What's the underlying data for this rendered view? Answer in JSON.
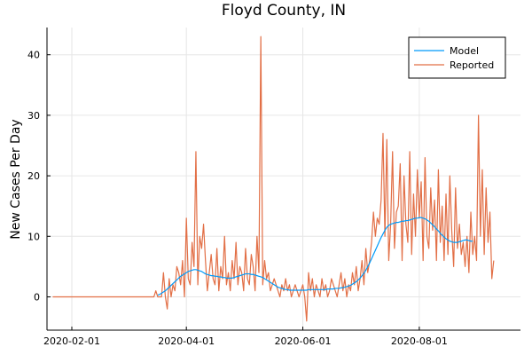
{
  "chart_data": {
    "type": "line",
    "title": "Floyd County, IN",
    "xlabel": "",
    "ylabel": "New Cases Per Day",
    "x_start": "2020-01-22",
    "x_step_days": 1,
    "xlim": [
      "2020-01-19",
      "2020-09-23"
    ],
    "ylim": [
      -5.5,
      44.5
    ],
    "xticks": [
      {
        "date": "2020-02-01",
        "label": "2020-02-01"
      },
      {
        "date": "2020-04-01",
        "label": "2020-04-01"
      },
      {
        "date": "2020-06-01",
        "label": "2020-06-01"
      },
      {
        "date": "2020-08-01",
        "label": "2020-08-01"
      }
    ],
    "yticks": [
      0,
      10,
      20,
      30,
      40
    ],
    "grid": true,
    "legend_position": "top-right",
    "series": [
      {
        "name": "Model",
        "color": "#009af9",
        "start_date": "2020-03-17",
        "values": [
          0.3,
          0.4,
          0.6,
          0.8,
          1.0,
          1.3,
          1.6,
          1.9,
          2.2,
          2.5,
          2.8,
          3.1,
          3.4,
          3.6,
          3.8,
          4.0,
          4.2,
          4.3,
          4.4,
          4.5,
          4.5,
          4.4,
          4.3,
          4.2,
          4.0,
          3.8,
          3.7,
          3.6,
          3.5,
          3.5,
          3.4,
          3.4,
          3.3,
          3.3,
          3.2,
          3.2,
          3.1,
          3.1,
          3.1,
          3.1,
          3.2,
          3.3,
          3.4,
          3.5,
          3.6,
          3.7,
          3.8,
          3.8,
          3.8,
          3.7,
          3.7,
          3.6,
          3.5,
          3.4,
          3.3,
          3.2,
          3.0,
          2.8,
          2.6,
          2.4,
          2.2,
          2.0,
          1.8,
          1.6,
          1.5,
          1.4,
          1.3,
          1.2,
          1.2,
          1.1,
          1.1,
          1.1,
          1.1,
          1.1,
          1.1,
          1.1,
          1.1,
          1.1,
          1.1,
          1.2,
          1.2,
          1.2,
          1.2,
          1.2,
          1.2,
          1.2,
          1.2,
          1.2,
          1.2,
          1.3,
          1.3,
          1.3,
          1.3,
          1.4,
          1.4,
          1.4,
          1.5,
          1.5,
          1.6,
          1.7,
          1.8,
          1.9,
          2.1,
          2.3,
          2.5,
          2.8,
          3.1,
          3.5,
          3.9,
          4.4,
          5.0,
          5.6,
          6.3,
          7.0,
          7.7,
          8.4,
          9.1,
          9.8,
          10.4,
          11.0,
          11.5,
          11.8,
          12.0,
          12.1,
          12.2,
          12.3,
          12.3,
          12.4,
          12.5,
          12.5,
          12.6,
          12.6,
          12.7,
          12.8,
          12.9,
          13.0,
          13.0,
          13.1,
          13.1,
          13.0,
          12.9,
          12.7,
          12.5,
          12.2,
          11.9,
          11.6,
          11.2,
          10.9,
          10.5,
          10.2,
          9.9,
          9.6,
          9.4,
          9.2,
          9.1,
          9.0,
          9.0,
          9.0,
          9.1,
          9.2,
          9.3,
          9.4,
          9.4,
          9.3,
          9.2,
          9.2
        ]
      },
      {
        "name": "Reported",
        "color": "#e26f46",
        "start_date": "2020-01-22",
        "values": [
          0,
          0,
          0,
          0,
          0,
          0,
          0,
          0,
          0,
          0,
          0,
          0,
          0,
          0,
          0,
          0,
          0,
          0,
          0,
          0,
          0,
          0,
          0,
          0,
          0,
          0,
          0,
          0,
          0,
          0,
          0,
          0,
          0,
          0,
          0,
          0,
          0,
          0,
          0,
          0,
          0,
          0,
          0,
          0,
          0,
          0,
          0,
          0,
          0,
          0,
          0,
          0,
          0,
          0,
          1,
          0,
          0,
          0,
          4,
          0,
          -2,
          3,
          0,
          2,
          1,
          5,
          4,
          2,
          6,
          0,
          13,
          3,
          2,
          9,
          5,
          24,
          2,
          10,
          8,
          12,
          6,
          1,
          4,
          7,
          3,
          2,
          8,
          1,
          5,
          3,
          10,
          2,
          4,
          1,
          6,
          3,
          9,
          2,
          5,
          4,
          1,
          8,
          3,
          2,
          7,
          5,
          1,
          10,
          4,
          43,
          2,
          6,
          3,
          4,
          1,
          2,
          3,
          2,
          1,
          0,
          2,
          1,
          3,
          1,
          2,
          0,
          1,
          2,
          1,
          0,
          1,
          2,
          0,
          -4,
          4,
          1,
          3,
          0,
          2,
          1,
          0,
          3,
          1,
          2,
          0,
          1,
          3,
          2,
          1,
          0,
          2,
          4,
          1,
          3,
          0,
          2,
          1,
          4,
          2,
          5,
          1,
          3,
          6,
          2,
          8,
          4,
          6,
          9,
          14,
          10,
          13,
          12,
          16,
          27,
          10,
          26,
          6,
          12,
          24,
          8,
          14,
          15,
          22,
          6,
          20,
          12,
          9,
          24,
          7,
          17,
          10,
          21,
          13,
          19,
          6,
          23,
          10,
          8,
          18,
          11,
          16,
          6,
          21,
          9,
          15,
          6,
          17,
          7,
          20,
          11,
          5,
          18,
          8,
          12,
          7,
          9,
          5,
          10,
          4,
          14,
          7,
          10,
          6,
          30,
          10,
          21,
          7,
          18,
          9,
          14,
          3,
          6
        ]
      }
    ]
  }
}
